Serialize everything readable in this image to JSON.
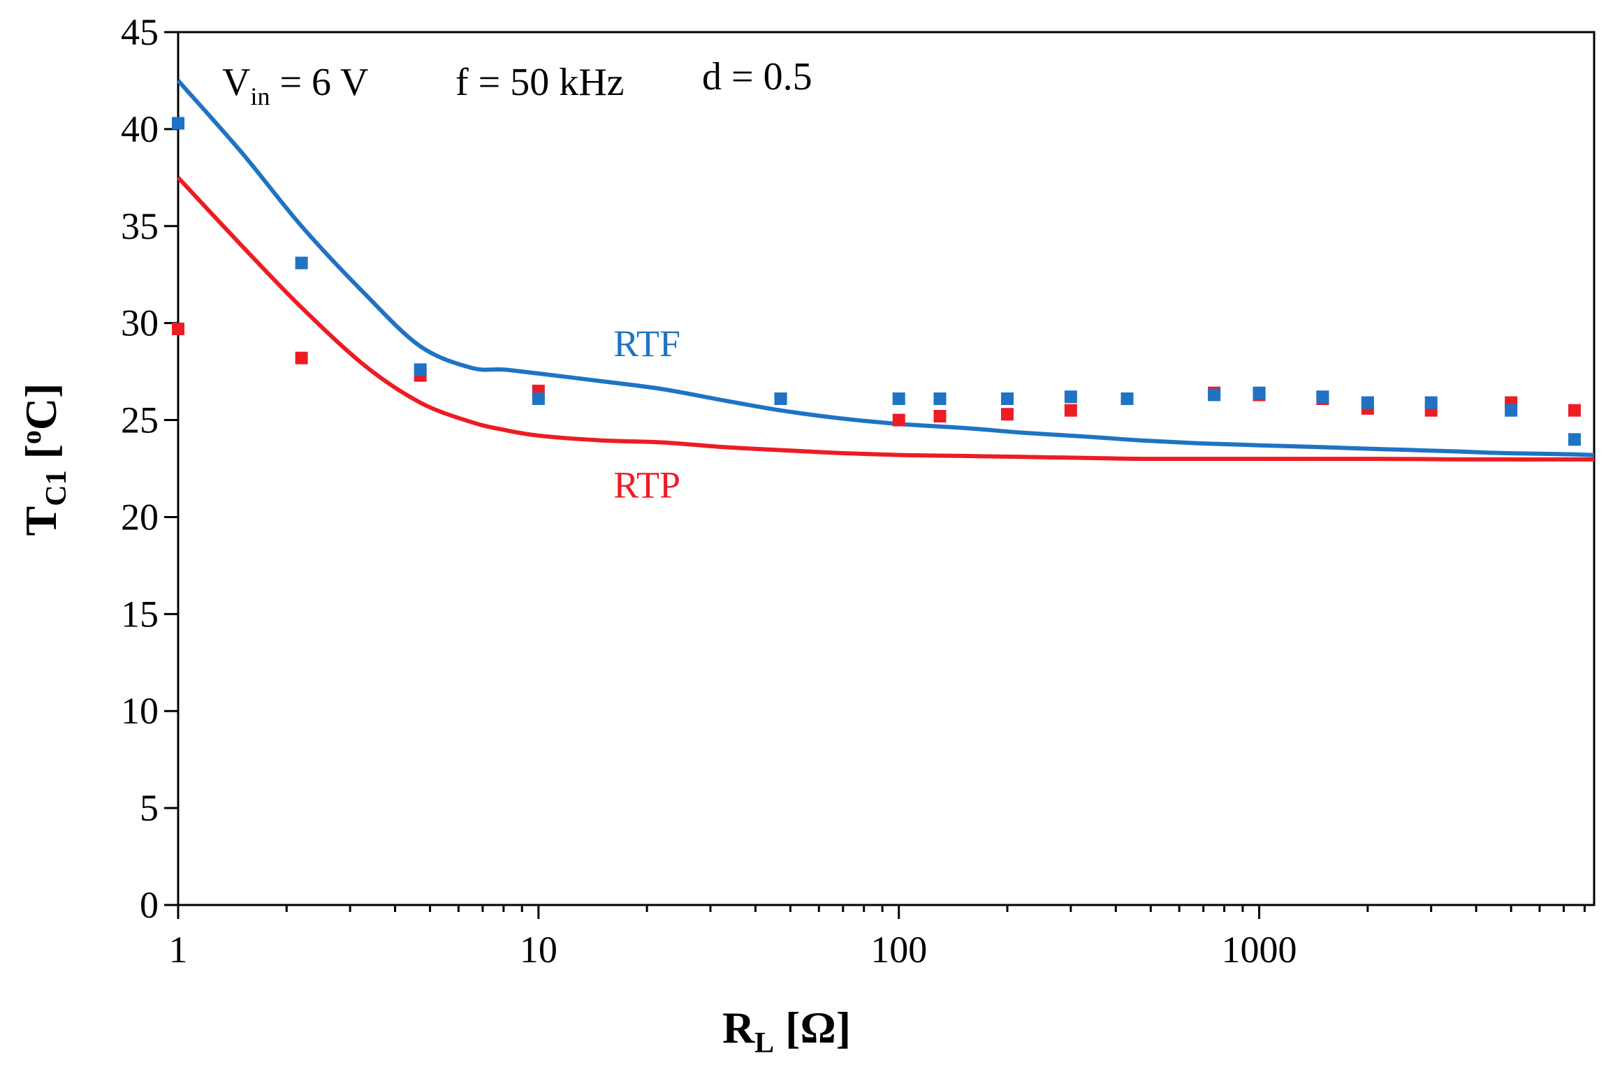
{
  "chart_data": {
    "type": "scatter",
    "title": "",
    "xscale": "log",
    "xlim": [
      1,
      8500
    ],
    "ylim": [
      0,
      45
    ],
    "xticks": [
      1,
      10,
      100,
      1000
    ],
    "xtick_labels": [
      "1",
      "10",
      "100",
      "1000"
    ],
    "yticks": [
      0,
      5,
      10,
      15,
      20,
      25,
      30,
      35,
      40,
      45
    ],
    "ytick_labels": [
      "0",
      "5",
      "10",
      "15",
      "20",
      "25",
      "30",
      "35",
      "40",
      "45"
    ],
    "xlabel": {
      "main": "R",
      "sub": "L",
      "rest": " [Ω]"
    },
    "ylabel": {
      "main": "T",
      "sub": "C1",
      "rest": " [",
      "sup": "o",
      "end": "C]"
    },
    "annotations": {
      "vin": {
        "main": "V",
        "sub": "in",
        "rest": " = 6 V"
      },
      "freq": "f = 50 kHz",
      "duty": "d = 0.5"
    },
    "grid": false,
    "series": [
      {
        "name": "RTF",
        "color": "#1f73c4",
        "line_x": [
          1,
          1.5,
          2.2,
          3.3,
          4.7,
          6.5,
          8,
          10,
          15,
          22,
          33,
          47,
          68,
          100,
          150,
          220,
          330,
          470,
          680,
          1000,
          1500,
          2200,
          3300,
          4700,
          6800,
          8500
        ],
        "line_y": [
          42.5,
          38.8,
          35,
          31.5,
          28.8,
          27.7,
          27.6,
          27.4,
          27,
          26.6,
          26,
          25.5,
          25.1,
          24.8,
          24.6,
          24.35,
          24.15,
          23.95,
          23.8,
          23.7,
          23.6,
          23.5,
          23.4,
          23.3,
          23.25,
          23.2
        ],
        "points_x": [
          1,
          2.2,
          4.7,
          10,
          47,
          100,
          130,
          200,
          300,
          430,
          750,
          1000,
          1500,
          2000,
          3000,
          5000,
          7500
        ],
        "points_y": [
          40.3,
          33.1,
          27.6,
          26.1,
          26.1,
          26.1,
          26.1,
          26.1,
          26.2,
          26.1,
          26.3,
          26.4,
          26.2,
          25.9,
          25.9,
          25.5,
          24
        ]
      },
      {
        "name": "RTP",
        "color": "#ed1c24",
        "line_x": [
          1,
          1.5,
          2.2,
          3.3,
          4.7,
          6.5,
          8,
          10,
          15,
          22,
          33,
          47,
          68,
          100,
          150,
          220,
          330,
          470,
          680,
          1000,
          1500,
          2200,
          3300,
          4700,
          6800,
          8500
        ],
        "line_y": [
          37.5,
          34,
          30.8,
          27.8,
          25.9,
          24.9,
          24.5,
          24.2,
          23.95,
          23.85,
          23.6,
          23.45,
          23.3,
          23.2,
          23.15,
          23.1,
          23.05,
          23,
          23,
          23,
          23,
          23,
          22.98,
          22.97,
          22.97,
          22.97
        ],
        "points_x": [
          1,
          2.2,
          4.7,
          10,
          47,
          100,
          130,
          200,
          300,
          430,
          750,
          1000,
          1500,
          2000,
          3000,
          5000,
          7500
        ],
        "points_y": [
          29.7,
          28.2,
          27.3,
          26.5,
          26.1,
          25,
          25.2,
          25.3,
          25.5,
          26.1,
          26.4,
          26.3,
          26.1,
          25.6,
          25.5,
          25.9,
          25.5
        ]
      }
    ],
    "series_labels": [
      {
        "text": "RTF",
        "x": 20,
        "y": 28.3,
        "color": "#1f73c4"
      },
      {
        "text": "RTP",
        "x": 20,
        "y": 21,
        "color": "#ed1c24"
      }
    ]
  }
}
